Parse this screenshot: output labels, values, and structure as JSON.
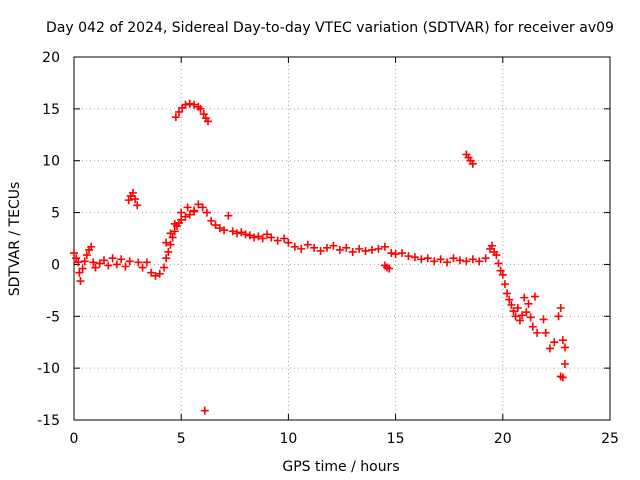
{
  "chart_data": {
    "type": "scatter",
    "title": "Day 042 of 2024, Sidereal Day-to-day VTEC variation (SDTVAR) for receiver av09",
    "xlabel": "GPS time / hours",
    "ylabel": "SDTVAR / TECUs",
    "xlim": [
      0,
      25
    ],
    "ylim": [
      -15,
      20
    ],
    "xticks": [
      0,
      5,
      10,
      15,
      20,
      25
    ],
    "yticks": [
      -15,
      -10,
      -5,
      0,
      5,
      10,
      15,
      20
    ],
    "xtick_labels": [
      "0",
      "5",
      "10",
      "15",
      "20",
      "25"
    ],
    "ytick_labels": [
      "-15",
      "-10",
      "-5",
      "0",
      "5",
      "10",
      "15",
      "20"
    ],
    "grid": true,
    "marker": "+",
    "series": [
      {
        "name": "SDTVAR",
        "color": "#ff0000",
        "points": [
          [
            0.0,
            1.1
          ],
          [
            0.1,
            0.6
          ],
          [
            0.2,
            0.2
          ],
          [
            0.25,
            -0.8
          ],
          [
            0.3,
            -1.6
          ],
          [
            0.4,
            -0.4
          ],
          [
            0.5,
            0.3
          ],
          [
            0.6,
            0.9
          ],
          [
            0.7,
            1.4
          ],
          [
            0.8,
            1.7
          ],
          [
            0.9,
            0.2
          ],
          [
            1.0,
            -0.3
          ],
          [
            1.2,
            0.1
          ],
          [
            1.4,
            0.4
          ],
          [
            1.6,
            -0.1
          ],
          [
            1.8,
            0.6
          ],
          [
            2.0,
            0.0
          ],
          [
            2.2,
            0.5
          ],
          [
            2.4,
            -0.2
          ],
          [
            2.6,
            0.3
          ],
          [
            2.55,
            6.2
          ],
          [
            2.65,
            6.6
          ],
          [
            2.75,
            6.9
          ],
          [
            2.85,
            6.3
          ],
          [
            2.95,
            5.7
          ],
          [
            3.0,
            0.2
          ],
          [
            3.2,
            -0.3
          ],
          [
            3.4,
            0.2
          ],
          [
            3.6,
            -0.8
          ],
          [
            3.8,
            -1.1
          ],
          [
            4.0,
            -0.9
          ],
          [
            4.2,
            -0.3
          ],
          [
            4.3,
            0.6
          ],
          [
            4.4,
            1.2
          ],
          [
            4.5,
            1.9
          ],
          [
            4.6,
            2.6
          ],
          [
            4.7,
            3.2
          ],
          [
            4.8,
            3.7
          ],
          [
            4.9,
            4.0
          ],
          [
            5.0,
            4.3
          ],
          [
            5.2,
            4.6
          ],
          [
            5.4,
            4.8
          ],
          [
            5.6,
            5.2
          ],
          [
            5.8,
            5.8
          ],
          [
            6.0,
            5.5
          ],
          [
            6.2,
            5.0
          ],
          [
            6.4,
            4.2
          ],
          [
            4.3,
            2.1
          ],
          [
            4.5,
            3.0
          ],
          [
            4.7,
            3.9
          ],
          [
            5.0,
            5.0
          ],
          [
            5.3,
            5.5
          ],
          [
            5.6,
            5.1
          ],
          [
            4.75,
            14.2
          ],
          [
            4.9,
            14.7
          ],
          [
            5.05,
            15.1
          ],
          [
            5.2,
            15.4
          ],
          [
            5.4,
            15.5
          ],
          [
            5.6,
            15.4
          ],
          [
            5.8,
            15.2
          ],
          [
            5.9,
            15.0
          ],
          [
            6.05,
            14.5
          ],
          [
            6.15,
            14.1
          ],
          [
            6.25,
            13.8
          ],
          [
            6.1,
            -14.1
          ],
          [
            6.6,
            3.8
          ],
          [
            6.8,
            3.5
          ],
          [
            7.0,
            3.3
          ],
          [
            7.2,
            4.7
          ],
          [
            7.4,
            3.2
          ],
          [
            7.6,
            3.0
          ],
          [
            7.8,
            3.1
          ],
          [
            8.0,
            2.9
          ],
          [
            8.2,
            2.8
          ],
          [
            8.4,
            2.6
          ],
          [
            8.6,
            2.7
          ],
          [
            8.8,
            2.5
          ],
          [
            9.0,
            2.9
          ],
          [
            9.2,
            2.6
          ],
          [
            9.5,
            2.3
          ],
          [
            9.8,
            2.5
          ],
          [
            10.0,
            2.1
          ],
          [
            10.3,
            1.7
          ],
          [
            10.6,
            1.5
          ],
          [
            10.9,
            1.9
          ],
          [
            11.2,
            1.6
          ],
          [
            11.5,
            1.3
          ],
          [
            11.8,
            1.6
          ],
          [
            12.1,
            1.8
          ],
          [
            12.4,
            1.4
          ],
          [
            12.7,
            1.6
          ],
          [
            13.0,
            1.2
          ],
          [
            13.3,
            1.5
          ],
          [
            13.6,
            1.3
          ],
          [
            13.9,
            1.4
          ],
          [
            14.2,
            1.5
          ],
          [
            14.5,
            1.7
          ],
          [
            14.8,
            1.1
          ],
          [
            14.5,
            -0.1
          ],
          [
            14.6,
            -0.3
          ],
          [
            14.7,
            -0.4
          ],
          [
            15.0,
            1.0
          ],
          [
            15.3,
            1.1
          ],
          [
            15.6,
            0.8
          ],
          [
            15.9,
            0.7
          ],
          [
            16.2,
            0.5
          ],
          [
            16.5,
            0.6
          ],
          [
            16.8,
            0.3
          ],
          [
            17.1,
            0.5
          ],
          [
            17.4,
            0.2
          ],
          [
            17.7,
            0.6
          ],
          [
            18.0,
            0.4
          ],
          [
            18.3,
            0.3
          ],
          [
            18.6,
            0.5
          ],
          [
            18.9,
            0.3
          ],
          [
            19.2,
            0.6
          ],
          [
            18.3,
            10.6
          ],
          [
            18.4,
            10.3
          ],
          [
            18.5,
            10.0
          ],
          [
            18.6,
            9.7
          ],
          [
            19.4,
            1.5
          ],
          [
            19.5,
            1.8
          ],
          [
            19.6,
            1.2
          ],
          [
            19.7,
            0.9
          ],
          [
            19.8,
            0.1
          ],
          [
            19.9,
            -0.6
          ],
          [
            20.0,
            -1.0
          ],
          [
            20.1,
            -1.9
          ],
          [
            20.2,
            -2.8
          ],
          [
            20.3,
            -3.4
          ],
          [
            20.4,
            -3.9
          ],
          [
            20.5,
            -4.5
          ],
          [
            20.6,
            -5.0
          ],
          [
            20.7,
            -4.2
          ],
          [
            20.8,
            -5.4
          ],
          [
            20.9,
            -4.9
          ],
          [
            21.0,
            -3.2
          ],
          [
            21.1,
            -4.6
          ],
          [
            21.2,
            -3.8
          ],
          [
            21.3,
            -5.1
          ],
          [
            21.4,
            -6.0
          ],
          [
            21.5,
            -3.1
          ],
          [
            21.6,
            -6.6
          ],
          [
            21.9,
            -5.3
          ],
          [
            22.0,
            -6.6
          ],
          [
            22.2,
            -8.1
          ],
          [
            22.4,
            -7.5
          ],
          [
            22.6,
            -5.0
          ],
          [
            22.7,
            -4.2
          ],
          [
            22.8,
            -7.3
          ],
          [
            22.9,
            -8.0
          ],
          [
            22.7,
            -10.8
          ],
          [
            22.8,
            -10.9
          ],
          [
            22.9,
            -9.6
          ]
        ]
      }
    ]
  }
}
